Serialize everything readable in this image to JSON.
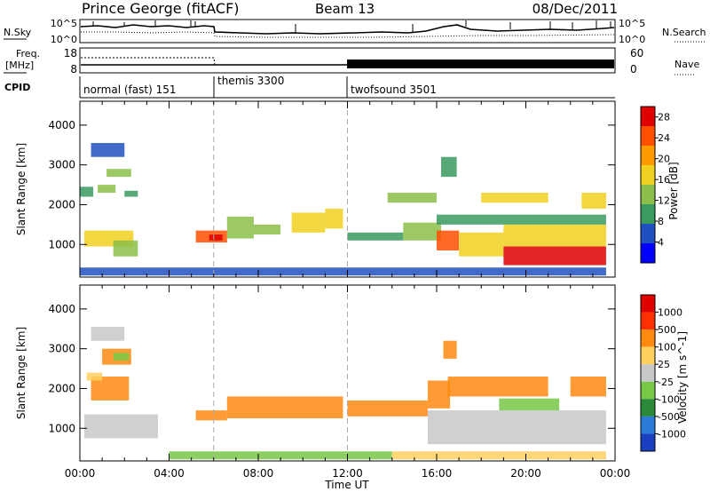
{
  "header": {
    "station": "Prince George (fitACF)",
    "beam": "Beam 13",
    "date": "08/Dec/2011"
  },
  "strip_labels": {
    "nsky": "N.Sky",
    "nsky_ticks": [
      "10^5",
      "10^0"
    ],
    "nsearch": "N.Search",
    "freq_line1": "Freq.",
    "freq_line2": "[MHz]",
    "freq_ticks": [
      "18",
      "8"
    ],
    "nave_ticks": [
      "60",
      "0"
    ],
    "nave": "Nave",
    "cpid": "CPID"
  },
  "cpid_segments": [
    {
      "label": "normal (fast) 151",
      "start_hour": 0
    },
    {
      "label": "themis 3300",
      "start_hour": 6
    },
    {
      "label": "twofsound 3501",
      "start_hour": 12
    }
  ],
  "chart_data": [
    {
      "type": "heatmap",
      "title": "",
      "xlabel": "Time UT",
      "ylabel": "Slant Range [km]",
      "xlim": [
        0,
        24
      ],
      "ylim": [
        180,
        4600
      ],
      "x_ticks": [
        "00:00",
        "04:00",
        "08:00",
        "12:00",
        "16:00",
        "20:00",
        "00:00"
      ],
      "x_tick_hours": [
        0,
        4,
        8,
        12,
        16,
        20,
        24
      ],
      "y_ticks": [
        "1000",
        "2000",
        "3000",
        "4000"
      ],
      "y_tick_values": [
        1000,
        2000,
        3000,
        4000
      ],
      "colorbar": {
        "label": "Power [dB]",
        "range": [
          0,
          30
        ],
        "ticks": [
          "4",
          "8",
          "12",
          "16",
          "20",
          "24",
          "28"
        ],
        "tick_values": [
          4,
          8,
          12,
          16,
          20,
          24,
          28
        ],
        "colors": [
          "#0000ff",
          "#2050c0",
          "#3a9a60",
          "#8cc04a",
          "#f0d020",
          "#ff9a00",
          "#ff5000",
          "#e00000"
        ]
      },
      "regions": [
        {
          "t0": 0.0,
          "t1": 0.6,
          "r0": 2200,
          "r1": 2450,
          "level": 2
        },
        {
          "t0": 0.2,
          "t1": 2.4,
          "r0": 950,
          "r1": 1350,
          "level": 4
        },
        {
          "t0": 1.5,
          "t1": 2.6,
          "r0": 700,
          "r1": 1100,
          "level": 3
        },
        {
          "t0": 1.2,
          "t1": 2.3,
          "r0": 2700,
          "r1": 2900,
          "level": 3
        },
        {
          "t0": 0.8,
          "t1": 1.6,
          "r0": 2300,
          "r1": 2500,
          "level": 3
        },
        {
          "t0": 0.5,
          "t1": 2.0,
          "r0": 3200,
          "r1": 3550,
          "level": 1
        },
        {
          "t0": 2.0,
          "t1": 2.6,
          "r0": 2200,
          "r1": 2350,
          "level": 2
        },
        {
          "t0": 5.2,
          "t1": 6.6,
          "r0": 1050,
          "r1": 1350,
          "level": 6
        },
        {
          "t0": 5.8,
          "t1": 6.4,
          "r0": 1100,
          "r1": 1250,
          "level": 7
        },
        {
          "t0": 6.6,
          "t1": 7.8,
          "r0": 1150,
          "r1": 1700,
          "level": 3
        },
        {
          "t0": 7.8,
          "t1": 9.0,
          "r0": 1250,
          "r1": 1500,
          "level": 3
        },
        {
          "t0": 9.5,
          "t1": 11.0,
          "r0": 1300,
          "r1": 1800,
          "level": 4
        },
        {
          "t0": 11.0,
          "t1": 11.8,
          "r0": 1400,
          "r1": 1900,
          "level": 4
        },
        {
          "t0": 12.0,
          "t1": 14.5,
          "r0": 1100,
          "r1": 1300,
          "level": 2
        },
        {
          "t0": 14.5,
          "t1": 16.2,
          "r0": 1100,
          "r1": 1550,
          "level": 3
        },
        {
          "t0": 16.0,
          "t1": 17.0,
          "r0": 850,
          "r1": 1350,
          "level": 6
        },
        {
          "t0": 17.0,
          "t1": 19.0,
          "r0": 700,
          "r1": 1300,
          "level": 4
        },
        {
          "t0": 19.0,
          "t1": 23.6,
          "r0": 480,
          "r1": 950,
          "level": 7
        },
        {
          "t0": 19.0,
          "t1": 23.6,
          "r0": 950,
          "r1": 1500,
          "level": 4
        },
        {
          "t0": 16.0,
          "t1": 23.6,
          "r0": 1500,
          "r1": 1750,
          "level": 2
        },
        {
          "t0": 18.0,
          "t1": 21.0,
          "r0": 2050,
          "r1": 2300,
          "level": 4
        },
        {
          "t0": 22.5,
          "t1": 23.6,
          "r0": 1900,
          "r1": 2300,
          "level": 4
        },
        {
          "t0": 16.2,
          "t1": 16.9,
          "r0": 2700,
          "r1": 3200,
          "level": 2
        },
        {
          "t0": 13.8,
          "t1": 16.0,
          "r0": 2050,
          "r1": 2300,
          "level": 3
        },
        {
          "t0": 0.0,
          "t1": 23.6,
          "r0": 220,
          "r1": 420,
          "level": 1
        }
      ]
    },
    {
      "type": "heatmap",
      "title": "",
      "xlabel": "Time UT",
      "ylabel": "Slant Range [km]",
      "xlim": [
        0,
        24
      ],
      "ylim": [
        180,
        4600
      ],
      "x_ticks": [
        "00:00",
        "04:00",
        "08:00",
        "12:00",
        "16:00",
        "20:00",
        "00:00"
      ],
      "x_tick_hours": [
        0,
        4,
        8,
        12,
        16,
        20,
        24
      ],
      "y_ticks": [
        "1000",
        "2000",
        "3000",
        "4000"
      ],
      "y_tick_values": [
        1000,
        2000,
        3000,
        4000
      ],
      "colorbar": {
        "label": "Velocity [m s^-1]",
        "ticks": [
          "1000",
          "500",
          "100",
          "25",
          "-25",
          "-100",
          "-500",
          "-1000"
        ],
        "colors": [
          "#1a3fc0",
          "#2a7ad8",
          "#2a8a3a",
          "#78c848",
          "#c8c8c8",
          "#ffd060",
          "#ff8a10",
          "#ff3000",
          "#e00000"
        ]
      },
      "regions": [
        {
          "t0": 0.2,
          "t1": 3.5,
          "r0": 750,
          "r1": 1350,
          "level": 4
        },
        {
          "t0": 0.5,
          "t1": 2.2,
          "r0": 1700,
          "r1": 2300,
          "level": 6
        },
        {
          "t0": 1.0,
          "t1": 2.3,
          "r0": 2600,
          "r1": 3000,
          "level": 6
        },
        {
          "t0": 1.5,
          "t1": 2.2,
          "r0": 2700,
          "r1": 2900,
          "level": 3
        },
        {
          "t0": 0.3,
          "t1": 1.0,
          "r0": 2200,
          "r1": 2400,
          "level": 5
        },
        {
          "t0": 0.5,
          "t1": 2.0,
          "r0": 3200,
          "r1": 3550,
          "level": 4
        },
        {
          "t0": 5.2,
          "t1": 6.6,
          "r0": 1200,
          "r1": 1450,
          "level": 6
        },
        {
          "t0": 6.6,
          "t1": 11.8,
          "r0": 1250,
          "r1": 1800,
          "level": 6
        },
        {
          "t0": 12.0,
          "t1": 15.6,
          "r0": 1300,
          "r1": 1700,
          "level": 6
        },
        {
          "t0": 15.6,
          "t1": 16.6,
          "r0": 1500,
          "r1": 2200,
          "level": 6
        },
        {
          "t0": 15.6,
          "t1": 23.6,
          "r0": 600,
          "r1": 1450,
          "level": 4
        },
        {
          "t0": 18.8,
          "t1": 21.5,
          "r0": 1450,
          "r1": 1750,
          "level": 3
        },
        {
          "t0": 16.5,
          "t1": 21.0,
          "r0": 1800,
          "r1": 2300,
          "level": 6
        },
        {
          "t0": 22.0,
          "t1": 23.6,
          "r0": 1800,
          "r1": 2300,
          "level": 6
        },
        {
          "t0": 16.3,
          "t1": 16.9,
          "r0": 2750,
          "r1": 3200,
          "level": 6
        },
        {
          "t0": 4.0,
          "t1": 14.0,
          "r0": 220,
          "r1": 420,
          "level": 3
        },
        {
          "t0": 14.0,
          "t1": 23.6,
          "r0": 220,
          "r1": 420,
          "level": 5
        }
      ]
    }
  ]
}
